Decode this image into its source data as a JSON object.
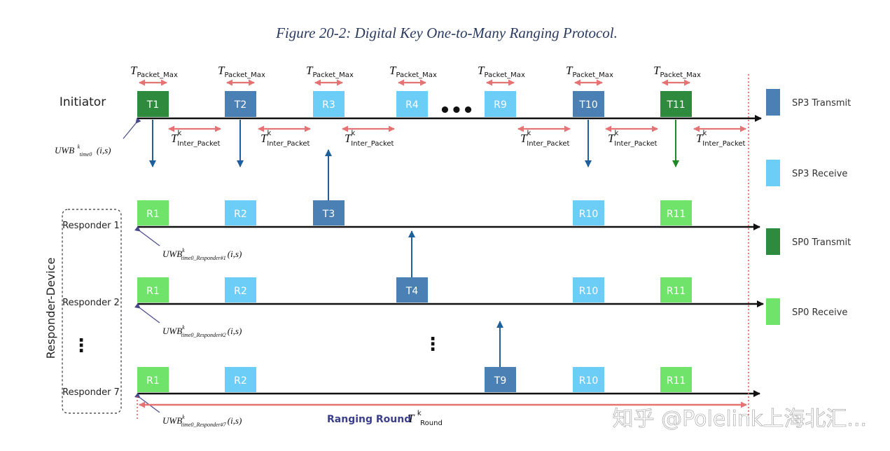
{
  "caption": "Figure 20-2: Digital Key One-to-Many Ranging Protocol.",
  "colors": {
    "sp3_transmit": "#4a80b3",
    "sp3_receive": "#6ccdf7",
    "sp0_transmit": "#2e8b3e",
    "sp0_receive": "#6fe36a",
    "timing_arrow": "#e57373",
    "axis": "#111111",
    "signal_arrow": "#1f5f9b",
    "signal_arrow_green": "#1e8a26",
    "boundary": "#e05050"
  },
  "initiator": {
    "label": "Initiator",
    "packets": [
      {
        "label": "T1",
        "type": "sp0_transmit"
      },
      {
        "label": "T2",
        "type": "sp3_transmit"
      },
      {
        "label": "R3",
        "type": "sp3_receive"
      },
      {
        "label": "R4",
        "type": "sp3_receive"
      },
      {
        "label": "R9",
        "type": "sp3_receive"
      },
      {
        "label": "T10",
        "type": "sp3_transmit"
      },
      {
        "label": "T11",
        "type": "sp0_transmit"
      }
    ],
    "ellipsis": "•••",
    "uwb_base": "UWB",
    "uwb_sup": "k",
    "uwb_sub": "time0",
    "uwb_args": "(i,s)"
  },
  "timing": {
    "symbol": "T",
    "packet_max_sub": "Packet_Max",
    "inter_packet_sub": "Inter_Packet",
    "sup": "k"
  },
  "responder_group_label": "Responder-Device",
  "vertical_ellipsis": "⋮",
  "responders": [
    {
      "label": "Responder 1",
      "packets": [
        {
          "label": "R1",
          "type": "sp0_receive"
        },
        {
          "label": "R2",
          "type": "sp3_receive"
        },
        {
          "label": "T3",
          "type": "sp3_transmit"
        },
        {
          "label": "R10",
          "type": "sp3_receive"
        },
        {
          "label": "R11",
          "type": "sp0_receive"
        }
      ],
      "uwb_sub": "time0_Responder#1"
    },
    {
      "label": "Responder 2",
      "packets": [
        {
          "label": "R1",
          "type": "sp0_receive"
        },
        {
          "label": "R2",
          "type": "sp3_receive"
        },
        {
          "label": "T4",
          "type": "sp3_transmit"
        },
        {
          "label": "R10",
          "type": "sp3_receive"
        },
        {
          "label": "R11",
          "type": "sp0_receive"
        }
      ],
      "uwb_sub": "time0_Responder#2"
    },
    {
      "label": "Responder 7",
      "packets": [
        {
          "label": "R1",
          "type": "sp0_receive"
        },
        {
          "label": "R2",
          "type": "sp3_receive"
        },
        {
          "label": "T9",
          "type": "sp3_transmit"
        },
        {
          "label": "R10",
          "type": "sp3_receive"
        },
        {
          "label": "R11",
          "type": "sp0_receive"
        }
      ],
      "uwb_sub": "time0_Responder#7"
    }
  ],
  "legend": [
    {
      "label": "SP3 Transmit",
      "type": "sp3_transmit"
    },
    {
      "label": "SP3 Receive",
      "type": "sp3_receive"
    },
    {
      "label": "SP0 Transmit",
      "type": "sp0_transmit"
    },
    {
      "label": "SP0 Receive",
      "type": "sp0_receive"
    }
  ],
  "ranging_round": {
    "label": "Ranging Round",
    "symbol": "T",
    "sup": "k",
    "sub": "Round"
  },
  "watermark": "知乎 @Polelink上海北汇..."
}
